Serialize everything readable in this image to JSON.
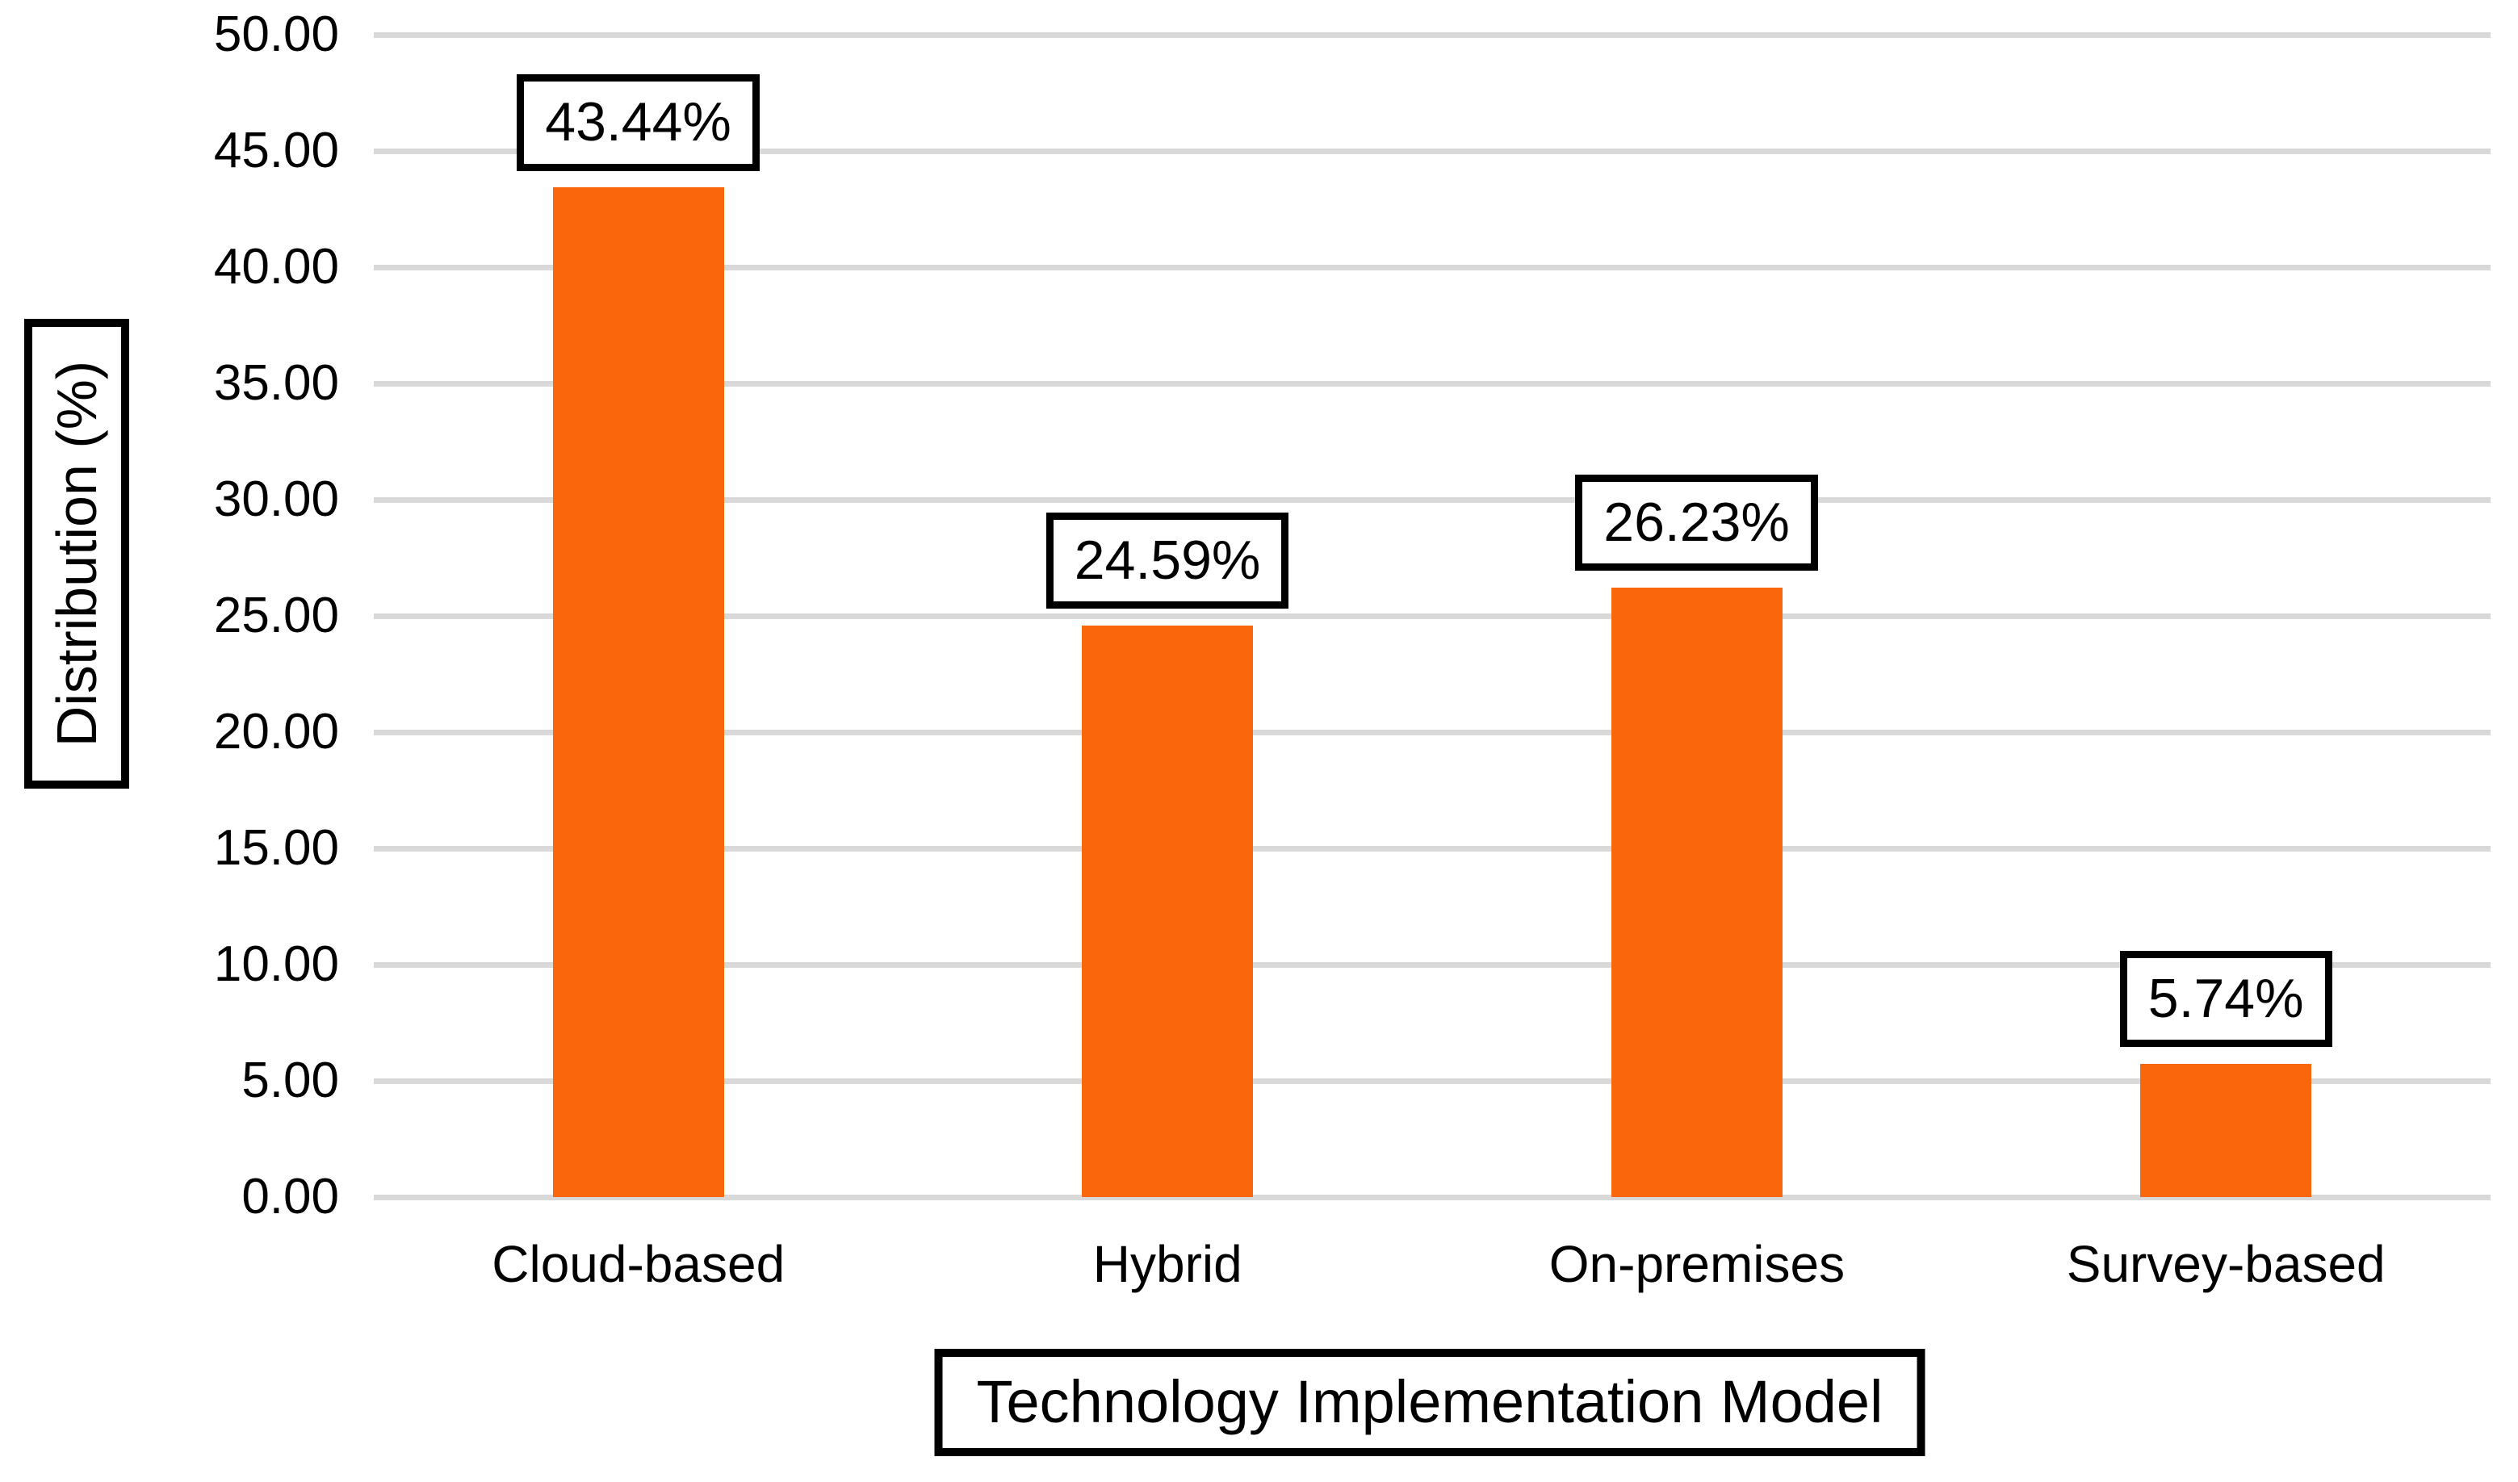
{
  "chart_data": {
    "type": "bar",
    "title": "",
    "xlabel": "Technology Implementation Model",
    "ylabel": "Distribution (%)",
    "categories": [
      "Cloud-based",
      "Hybrid",
      "On-premises",
      "Survey-based"
    ],
    "values": [
      43.44,
      24.59,
      26.23,
      5.74
    ],
    "data_labels": [
      "43.44%",
      "24.59%",
      "26.23%",
      "5.74%"
    ],
    "ylim": [
      0,
      50
    ],
    "ytick_step": 5,
    "yticks": [
      {
        "value": 50,
        "label": "50.00"
      },
      {
        "value": 45,
        "label": "45.00"
      },
      {
        "value": 40,
        "label": "40.00"
      },
      {
        "value": 35,
        "label": "35.00"
      },
      {
        "value": 30,
        "label": "30.00"
      },
      {
        "value": 25,
        "label": "25.00"
      },
      {
        "value": 20,
        "label": "20.00"
      },
      {
        "value": 15,
        "label": "15.00"
      },
      {
        "value": 10,
        "label": "10.00"
      },
      {
        "value": 5,
        "label": "5.00"
      },
      {
        "value": 0,
        "label": "0.00"
      }
    ],
    "grid": "horizontal",
    "legend": "none",
    "colors": {
      "bar": "#fa660c",
      "gridline": "#d9d9d9",
      "text": "#000000",
      "label_box_border": "#000000",
      "background": "#ffffff"
    }
  }
}
